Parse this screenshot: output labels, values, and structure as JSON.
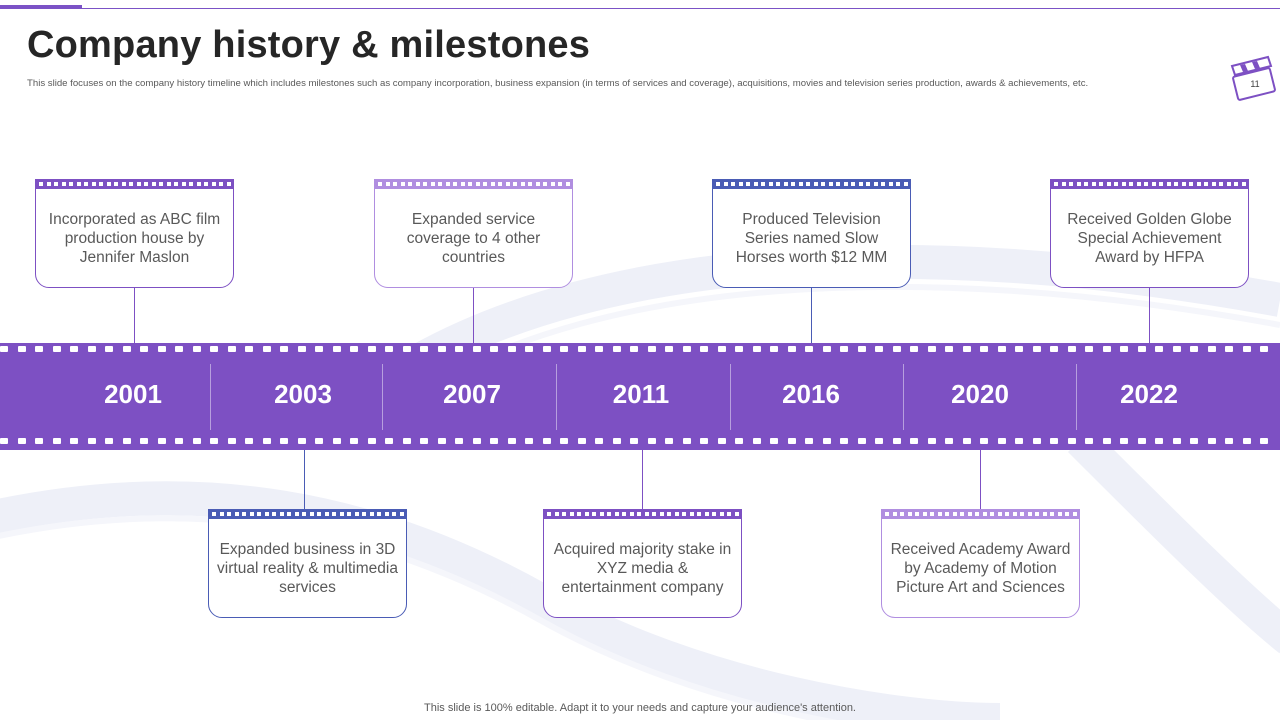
{
  "slide": {
    "title": "Company history & milestones",
    "subtitle": "This slide focuses on the company history timeline  which includes milestones such as company incorporation, business expansion (in terms of services and coverage), acquisitions, movies and television series production, awards & achievements, etc.",
    "page_number": "11",
    "footer": "This slide is 100% editable. Adapt it to your needs and capture your audience's attention."
  },
  "colors": {
    "accent": "#7d50c3",
    "lavender": "#b08ee0",
    "blue": "#4a5cb5"
  },
  "timeline": {
    "years": [
      "2001",
      "2003",
      "2007",
      "2011",
      "2016",
      "2020",
      "2022"
    ]
  },
  "milestones": {
    "top": [
      {
        "year": "2001",
        "text": "Incorporated as ABC film production house by Jennifer Maslon",
        "color": "purple"
      },
      {
        "year": "2007",
        "text": "Expanded service coverage to 4 other countries",
        "color": "lavender"
      },
      {
        "year": "2016",
        "text": "Produced Television Series named Slow Horses worth $12 MM",
        "color": "blue"
      },
      {
        "year": "2022",
        "text": "Received Golden Globe Special Achievement Award by HFPA",
        "color": "purple"
      }
    ],
    "bottom": [
      {
        "year": "2003",
        "text": "Expanded business in 3D virtual reality & multimedia services",
        "color": "blue"
      },
      {
        "year": "2011",
        "text": "Acquired majority stake in XYZ media & entertainment company",
        "color": "purple"
      },
      {
        "year": "2020",
        "text": "Received Academy Award by Academy of Motion Picture Art and Sciences",
        "color": "lavender"
      }
    ]
  }
}
